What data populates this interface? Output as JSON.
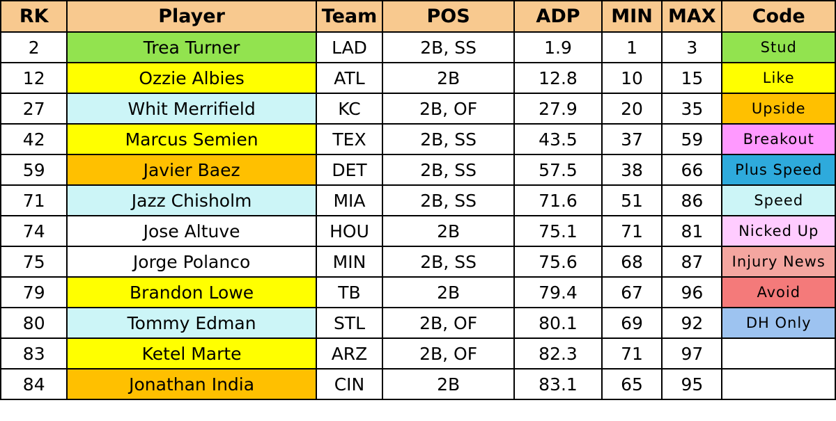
{
  "headers": [
    "RK",
    "Player",
    "Team",
    "POS",
    "ADP",
    "MIN",
    "MAX",
    "Code"
  ],
  "player_colors": {
    "Stud": "#92e34f",
    "Like": "#ffff00",
    "Upside": "#ffc000",
    "Speed": "#ccf5f7",
    "None": "#ffffff"
  },
  "rows": [
    {
      "rk": "2",
      "player": "Trea Turner",
      "player_code": "Stud",
      "team": "LAD",
      "pos": "2B, SS",
      "adp": "1.9",
      "min": "1",
      "max": "3"
    },
    {
      "rk": "12",
      "player": "Ozzie Albies",
      "player_code": "Like",
      "team": "ATL",
      "pos": "2B",
      "adp": "12.8",
      "min": "10",
      "max": "15"
    },
    {
      "rk": "27",
      "player": "Whit Merrifield",
      "player_code": "Speed",
      "team": "KC",
      "pos": "2B, OF",
      "adp": "27.9",
      "min": "20",
      "max": "35"
    },
    {
      "rk": "42",
      "player": "Marcus Semien",
      "player_code": "Like",
      "team": "TEX",
      "pos": "2B, SS",
      "adp": "43.5",
      "min": "37",
      "max": "59"
    },
    {
      "rk": "59",
      "player": "Javier Baez",
      "player_code": "Upside",
      "team": "DET",
      "pos": "2B, SS",
      "adp": "57.5",
      "min": "38",
      "max": "66"
    },
    {
      "rk": "71",
      "player": "Jazz Chisholm",
      "player_code": "Speed",
      "team": "MIA",
      "pos": "2B, SS",
      "adp": "71.6",
      "min": "51",
      "max": "86"
    },
    {
      "rk": "74",
      "player": "Jose Altuve",
      "player_code": "None",
      "team": "HOU",
      "pos": "2B",
      "adp": "75.1",
      "min": "71",
      "max": "81"
    },
    {
      "rk": "75",
      "player": "Jorge Polanco",
      "player_code": "None",
      "team": "MIN",
      "pos": "2B, SS",
      "adp": "75.6",
      "min": "68",
      "max": "87"
    },
    {
      "rk": "79",
      "player": "Brandon Lowe",
      "player_code": "Like",
      "team": "TB",
      "pos": "2B",
      "adp": "79.4",
      "min": "67",
      "max": "96"
    },
    {
      "rk": "80",
      "player": "Tommy Edman",
      "player_code": "Speed",
      "team": "STL",
      "pos": "2B, OF",
      "adp": "80.1",
      "min": "69",
      "max": "92"
    },
    {
      "rk": "83",
      "player": "Ketel Marte",
      "player_code": "Like",
      "team": "ARZ",
      "pos": "2B, OF",
      "adp": "82.3",
      "min": "71",
      "max": "97"
    },
    {
      "rk": "84",
      "player": "Jonathan India",
      "player_code": "Upside",
      "team": "CIN",
      "pos": "2B",
      "adp": "83.1",
      "min": "65",
      "max": "95"
    }
  ],
  "legend": [
    {
      "label": "Stud",
      "color": "#92e34f"
    },
    {
      "label": "Like",
      "color": "#ffff00"
    },
    {
      "label": "Upside",
      "color": "#ffc000"
    },
    {
      "label": "Breakout",
      "color": "#ff99ff"
    },
    {
      "label": "Plus Speed",
      "color": "#2eaadc"
    },
    {
      "label": "Speed",
      "color": "#ccf5f7"
    },
    {
      "label": "Nicked Up",
      "color": "#ffccff"
    },
    {
      "label": "Injury News",
      "color": "#f4a6a0"
    },
    {
      "label": "Avoid",
      "color": "#f47a7a"
    },
    {
      "label": "DH Only",
      "color": "#9dc3f0"
    },
    {
      "label": "",
      "color": "#ffffff"
    },
    {
      "label": "",
      "color": "#ffffff"
    }
  ]
}
